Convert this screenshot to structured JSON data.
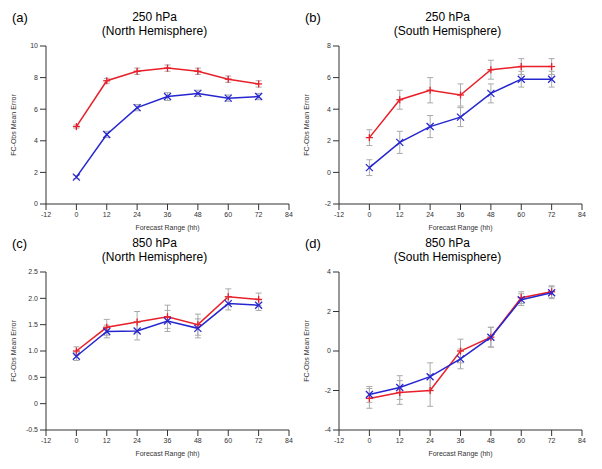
{
  "chart_data": [
    {
      "type": "line",
      "label": "(a)",
      "title": "250 hPa",
      "subtitle": "(North Hemisphere)",
      "x_label": "Forecast Range (hh)",
      "y_label": "FC-Obs Mean Error",
      "x": [
        0,
        12,
        24,
        36,
        48,
        60,
        72
      ],
      "xlim": [
        -12,
        84
      ],
      "xticks": [
        -12,
        0,
        12,
        24,
        36,
        48,
        60,
        72,
        84
      ],
      "ylim": [
        0,
        10
      ],
      "yticks": [
        0,
        2,
        4,
        6,
        8,
        10
      ],
      "series": [
        {
          "color": "#e8202a",
          "marker": "plus",
          "values": [
            4.9,
            7.8,
            8.4,
            8.6,
            8.4,
            7.9,
            7.6
          ],
          "errors": [
            0.1,
            0.15,
            0.2,
            0.2,
            0.2,
            0.2,
            0.2
          ]
        },
        {
          "color": "#2626d0",
          "marker": "cross",
          "values": [
            1.7,
            4.4,
            6.1,
            6.8,
            7.0,
            6.7,
            6.8
          ],
          "errors": [
            0.1,
            0.2,
            0.2,
            0.25,
            0.2,
            0.2,
            0.2
          ]
        }
      ]
    },
    {
      "type": "line",
      "label": "(b)",
      "title": "250 hPa",
      "subtitle": "(South Hemisphere)",
      "x_label": "Forecast Range (hh)",
      "y_label": "FC-Obs Mean Error",
      "x": [
        0,
        12,
        24,
        36,
        48,
        60,
        72
      ],
      "xlim": [
        -12,
        84
      ],
      "xticks": [
        -12,
        0,
        12,
        24,
        36,
        48,
        60,
        72,
        84
      ],
      "ylim": [
        -2,
        8
      ],
      "yticks": [
        -2,
        0,
        2,
        4,
        6,
        8
      ],
      "series": [
        {
          "color": "#e8202a",
          "marker": "plus",
          "values": [
            2.2,
            4.6,
            5.2,
            4.9,
            6.5,
            6.7,
            6.7
          ],
          "errors": [
            0.5,
            0.6,
            0.8,
            0.7,
            0.6,
            0.5,
            0.5
          ]
        },
        {
          "color": "#2626d0",
          "marker": "cross",
          "values": [
            0.3,
            1.9,
            2.9,
            3.5,
            5.0,
            5.9,
            5.9
          ],
          "errors": [
            0.5,
            0.7,
            0.7,
            0.6,
            0.6,
            0.5,
            0.5
          ]
        }
      ]
    },
    {
      "type": "line",
      "label": "(c)",
      "title": "850 hPa",
      "subtitle": "(North Hemisphere)",
      "x_label": "Forecast Range (hh)",
      "y_label": "FC-Obs Mean Error",
      "x": [
        0,
        12,
        24,
        36,
        48,
        60,
        72
      ],
      "xlim": [
        -12,
        84
      ],
      "xticks": [
        -12,
        0,
        12,
        24,
        36,
        48,
        60,
        72,
        84
      ],
      "ylim": [
        -0.5,
        2.5
      ],
      "yticks": [
        -0.5,
        0,
        0.5,
        {
          "value": 1,
          "label": "1.0"
        },
        1.5,
        {
          "value": 2,
          "label": "2.0"
        },
        2.5
      ],
      "series": [
        {
          "color": "#e8202a",
          "marker": "plus",
          "values": [
            1.0,
            1.45,
            1.55,
            1.65,
            1.5,
            2.03,
            1.98
          ],
          "errors": [
            0.08,
            0.15,
            0.2,
            0.22,
            0.2,
            0.15,
            0.12
          ]
        },
        {
          "color": "#2626d0",
          "marker": "cross",
          "values": [
            0.9,
            1.37,
            1.38,
            1.57,
            1.43,
            1.9,
            1.87
          ],
          "errors": [
            0.08,
            0.12,
            0.17,
            0.2,
            0.18,
            0.12,
            0.1
          ]
        }
      ]
    },
    {
      "type": "line",
      "label": "(d)",
      "title": "850 hPa",
      "subtitle": "(South Hemisphere)",
      "x_label": "Forecast Range (hh)",
      "y_label": "FC-Obs Mean Error",
      "x": [
        0,
        12,
        24,
        36,
        48,
        60,
        72
      ],
      "xlim": [
        -12,
        84
      ],
      "xticks": [
        -12,
        0,
        12,
        24,
        36,
        48,
        60,
        72,
        84
      ],
      "ylim": [
        -4,
        4
      ],
      "yticks": [
        -4,
        -2,
        0,
        2,
        4
      ],
      "series": [
        {
          "color": "#e8202a",
          "marker": "plus",
          "values": [
            -2.4,
            -2.1,
            -2.0,
            0.0,
            0.7,
            2.7,
            3.0
          ],
          "errors": [
            0.5,
            0.6,
            0.8,
            0.6,
            0.5,
            0.3,
            0.3
          ]
        },
        {
          "color": "#2626d0",
          "marker": "cross",
          "values": [
            -2.2,
            -1.85,
            -1.3,
            -0.4,
            0.7,
            2.6,
            2.95
          ],
          "errors": [
            0.4,
            0.6,
            0.7,
            0.5,
            0.5,
            0.3,
            0.3
          ]
        }
      ]
    }
  ]
}
